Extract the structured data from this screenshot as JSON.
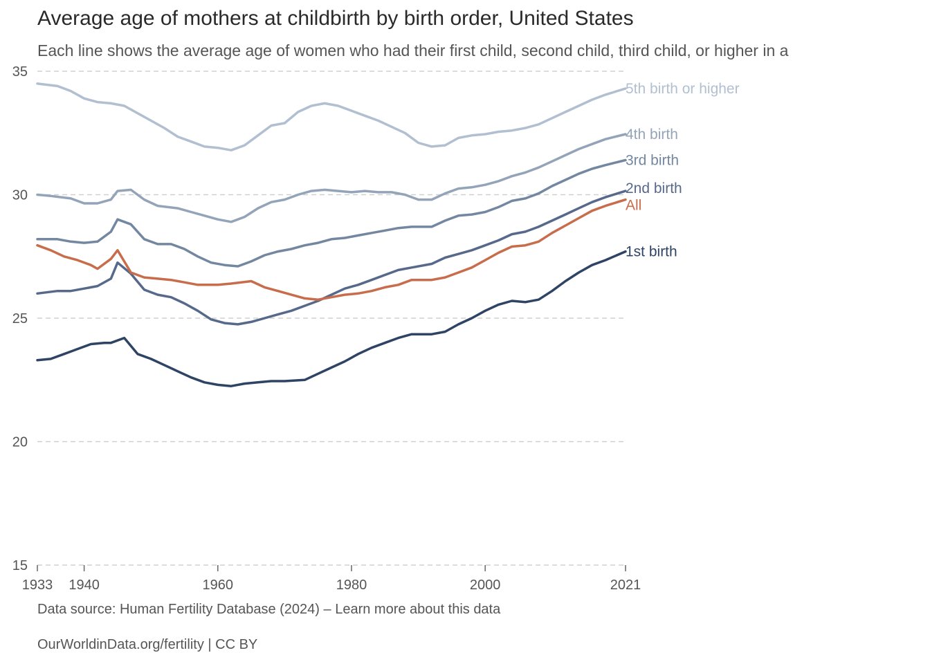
{
  "chart_data": {
    "type": "line",
    "title": "Average age of mothers at childbirth by birth order, United States",
    "subtitle": "Each line shows the average age of women who had their first child, second child, third child, or higher in a",
    "xlim": [
      1933,
      2021
    ],
    "ylim": [
      15,
      35
    ],
    "x_ticks": [
      1933,
      1940,
      1960,
      1980,
      2000,
      2021
    ],
    "y_ticks": [
      15,
      20,
      25,
      30,
      35
    ],
    "grid": "horizontal dashed",
    "legend": "inline labels at line ends",
    "series": [
      {
        "name": "5th birth or higher",
        "color": "#b1bfd1",
        "points": [
          [
            1933,
            34.5
          ],
          [
            1936,
            34.4
          ],
          [
            1938,
            34.2
          ],
          [
            1940,
            33.9
          ],
          [
            1942,
            33.75
          ],
          [
            1944,
            33.7
          ],
          [
            1946,
            33.6
          ],
          [
            1948,
            33.3
          ],
          [
            1950,
            33.0
          ],
          [
            1952,
            32.7
          ],
          [
            1954,
            32.35
          ],
          [
            1956,
            32.15
          ],
          [
            1958,
            31.95
          ],
          [
            1960,
            31.9
          ],
          [
            1962,
            31.8
          ],
          [
            1964,
            32.0
          ],
          [
            1966,
            32.4
          ],
          [
            1968,
            32.8
          ],
          [
            1970,
            32.9
          ],
          [
            1972,
            33.35
          ],
          [
            1974,
            33.6
          ],
          [
            1976,
            33.7
          ],
          [
            1978,
            33.6
          ],
          [
            1980,
            33.4
          ],
          [
            1982,
            33.2
          ],
          [
            1984,
            33.0
          ],
          [
            1986,
            32.75
          ],
          [
            1988,
            32.5
          ],
          [
            1990,
            32.1
          ],
          [
            1992,
            31.95
          ],
          [
            1994,
            32.0
          ],
          [
            1996,
            32.3
          ],
          [
            1998,
            32.4
          ],
          [
            2000,
            32.45
          ],
          [
            2002,
            32.55
          ],
          [
            2004,
            32.6
          ],
          [
            2006,
            32.7
          ],
          [
            2008,
            32.85
          ],
          [
            2010,
            33.1
          ],
          [
            2012,
            33.35
          ],
          [
            2014,
            33.6
          ],
          [
            2016,
            33.85
          ],
          [
            2018,
            34.05
          ],
          [
            2021,
            34.3
          ]
        ]
      },
      {
        "name": "4th birth",
        "color": "#94a4b8",
        "points": [
          [
            1933,
            30.0
          ],
          [
            1935,
            29.95
          ],
          [
            1938,
            29.85
          ],
          [
            1940,
            29.65
          ],
          [
            1942,
            29.65
          ],
          [
            1944,
            29.8
          ],
          [
            1945,
            30.15
          ],
          [
            1947,
            30.2
          ],
          [
            1949,
            29.8
          ],
          [
            1951,
            29.55
          ],
          [
            1954,
            29.45
          ],
          [
            1956,
            29.3
          ],
          [
            1958,
            29.15
          ],
          [
            1960,
            29.0
          ],
          [
            1962,
            28.9
          ],
          [
            1964,
            29.1
          ],
          [
            1966,
            29.45
          ],
          [
            1968,
            29.7
          ],
          [
            1970,
            29.8
          ],
          [
            1972,
            30.0
          ],
          [
            1974,
            30.15
          ],
          [
            1976,
            30.2
          ],
          [
            1978,
            30.15
          ],
          [
            1980,
            30.1
          ],
          [
            1982,
            30.15
          ],
          [
            1984,
            30.1
          ],
          [
            1986,
            30.1
          ],
          [
            1988,
            30.0
          ],
          [
            1990,
            29.8
          ],
          [
            1992,
            29.8
          ],
          [
            1994,
            30.05
          ],
          [
            1996,
            30.25
          ],
          [
            1998,
            30.3
          ],
          [
            2000,
            30.4
          ],
          [
            2002,
            30.55
          ],
          [
            2004,
            30.75
          ],
          [
            2006,
            30.9
          ],
          [
            2008,
            31.1
          ],
          [
            2010,
            31.35
          ],
          [
            2012,
            31.6
          ],
          [
            2014,
            31.85
          ],
          [
            2016,
            32.05
          ],
          [
            2018,
            32.25
          ],
          [
            2021,
            32.45
          ]
        ]
      },
      {
        "name": "3rd birth",
        "color": "#7387a1",
        "points": [
          [
            1933,
            28.2
          ],
          [
            1936,
            28.2
          ],
          [
            1938,
            28.1
          ],
          [
            1940,
            28.05
          ],
          [
            1942,
            28.1
          ],
          [
            1944,
            28.5
          ],
          [
            1945,
            29.0
          ],
          [
            1947,
            28.8
          ],
          [
            1949,
            28.2
          ],
          [
            1951,
            28.0
          ],
          [
            1953,
            28.0
          ],
          [
            1955,
            27.8
          ],
          [
            1957,
            27.5
          ],
          [
            1959,
            27.25
          ],
          [
            1961,
            27.15
          ],
          [
            1963,
            27.1
          ],
          [
            1965,
            27.3
          ],
          [
            1967,
            27.55
          ],
          [
            1969,
            27.7
          ],
          [
            1971,
            27.8
          ],
          [
            1973,
            27.95
          ],
          [
            1975,
            28.05
          ],
          [
            1977,
            28.2
          ],
          [
            1979,
            28.25
          ],
          [
            1981,
            28.35
          ],
          [
            1983,
            28.45
          ],
          [
            1985,
            28.55
          ],
          [
            1987,
            28.65
          ],
          [
            1989,
            28.7
          ],
          [
            1992,
            28.7
          ],
          [
            1994,
            28.95
          ],
          [
            1996,
            29.15
          ],
          [
            1998,
            29.2
          ],
          [
            2000,
            29.3
          ],
          [
            2002,
            29.5
          ],
          [
            2004,
            29.75
          ],
          [
            2006,
            29.85
          ],
          [
            2008,
            30.05
          ],
          [
            2010,
            30.35
          ],
          [
            2012,
            30.6
          ],
          [
            2014,
            30.85
          ],
          [
            2016,
            31.05
          ],
          [
            2018,
            31.2
          ],
          [
            2021,
            31.4
          ]
        ]
      },
      {
        "name": "2nd birth",
        "color": "#57698a",
        "points": [
          [
            1933,
            26.0
          ],
          [
            1936,
            26.1
          ],
          [
            1938,
            26.1
          ],
          [
            1940,
            26.2
          ],
          [
            1942,
            26.3
          ],
          [
            1944,
            26.6
          ],
          [
            1945,
            27.25
          ],
          [
            1947,
            26.8
          ],
          [
            1949,
            26.15
          ],
          [
            1951,
            25.95
          ],
          [
            1953,
            25.85
          ],
          [
            1955,
            25.6
          ],
          [
            1957,
            25.3
          ],
          [
            1959,
            24.95
          ],
          [
            1961,
            24.8
          ],
          [
            1963,
            24.75
          ],
          [
            1965,
            24.85
          ],
          [
            1967,
            25.0
          ],
          [
            1969,
            25.15
          ],
          [
            1971,
            25.3
          ],
          [
            1973,
            25.5
          ],
          [
            1975,
            25.7
          ],
          [
            1977,
            25.95
          ],
          [
            1979,
            26.2
          ],
          [
            1981,
            26.35
          ],
          [
            1983,
            26.55
          ],
          [
            1985,
            26.75
          ],
          [
            1987,
            26.95
          ],
          [
            1989,
            27.05
          ],
          [
            1992,
            27.2
          ],
          [
            1994,
            27.45
          ],
          [
            1996,
            27.6
          ],
          [
            1998,
            27.75
          ],
          [
            2000,
            27.95
          ],
          [
            2002,
            28.15
          ],
          [
            2004,
            28.4
          ],
          [
            2006,
            28.5
          ],
          [
            2008,
            28.7
          ],
          [
            2010,
            28.95
          ],
          [
            2012,
            29.2
          ],
          [
            2014,
            29.45
          ],
          [
            2016,
            29.7
          ],
          [
            2018,
            29.9
          ],
          [
            2021,
            30.15
          ]
        ]
      },
      {
        "name": "All",
        "color": "#c86d4c",
        "points": [
          [
            1933,
            27.95
          ],
          [
            1935,
            27.75
          ],
          [
            1937,
            27.5
          ],
          [
            1939,
            27.35
          ],
          [
            1941,
            27.15
          ],
          [
            1942,
            27.0
          ],
          [
            1944,
            27.4
          ],
          [
            1945,
            27.75
          ],
          [
            1947,
            26.85
          ],
          [
            1949,
            26.65
          ],
          [
            1951,
            26.6
          ],
          [
            1953,
            26.55
          ],
          [
            1955,
            26.45
          ],
          [
            1957,
            26.35
          ],
          [
            1960,
            26.35
          ],
          [
            1962,
            26.4
          ],
          [
            1965,
            26.5
          ],
          [
            1967,
            26.25
          ],
          [
            1969,
            26.1
          ],
          [
            1971,
            25.95
          ],
          [
            1973,
            25.8
          ],
          [
            1975,
            25.75
          ],
          [
            1977,
            25.85
          ],
          [
            1979,
            25.95
          ],
          [
            1981,
            26.0
          ],
          [
            1983,
            26.1
          ],
          [
            1985,
            26.25
          ],
          [
            1987,
            26.35
          ],
          [
            1989,
            26.55
          ],
          [
            1992,
            26.55
          ],
          [
            1994,
            26.65
          ],
          [
            1996,
            26.85
          ],
          [
            1998,
            27.05
          ],
          [
            2000,
            27.35
          ],
          [
            2002,
            27.65
          ],
          [
            2004,
            27.9
          ],
          [
            2006,
            27.95
          ],
          [
            2008,
            28.1
          ],
          [
            2010,
            28.45
          ],
          [
            2012,
            28.75
          ],
          [
            2014,
            29.05
          ],
          [
            2016,
            29.35
          ],
          [
            2018,
            29.55
          ],
          [
            2021,
            29.8
          ]
        ]
      },
      {
        "name": "1st birth",
        "color": "#2f4465",
        "points": [
          [
            1933,
            23.3
          ],
          [
            1935,
            23.35
          ],
          [
            1937,
            23.55
          ],
          [
            1939,
            23.75
          ],
          [
            1941,
            23.95
          ],
          [
            1943,
            24.0
          ],
          [
            1944,
            24.0
          ],
          [
            1946,
            24.2
          ],
          [
            1948,
            23.55
          ],
          [
            1950,
            23.35
          ],
          [
            1952,
            23.1
          ],
          [
            1954,
            22.85
          ],
          [
            1956,
            22.6
          ],
          [
            1958,
            22.4
          ],
          [
            1960,
            22.3
          ],
          [
            1962,
            22.25
          ],
          [
            1964,
            22.35
          ],
          [
            1966,
            22.4
          ],
          [
            1968,
            22.45
          ],
          [
            1970,
            22.45
          ],
          [
            1973,
            22.5
          ],
          [
            1975,
            22.75
          ],
          [
            1977,
            23.0
          ],
          [
            1979,
            23.25
          ],
          [
            1981,
            23.55
          ],
          [
            1983,
            23.8
          ],
          [
            1985,
            24.0
          ],
          [
            1987,
            24.2
          ],
          [
            1989,
            24.35
          ],
          [
            1992,
            24.35
          ],
          [
            1994,
            24.45
          ],
          [
            1996,
            24.75
          ],
          [
            1998,
            25.0
          ],
          [
            2000,
            25.3
          ],
          [
            2002,
            25.55
          ],
          [
            2004,
            25.7
          ],
          [
            2006,
            25.65
          ],
          [
            2008,
            25.75
          ],
          [
            2010,
            26.1
          ],
          [
            2012,
            26.5
          ],
          [
            2014,
            26.85
          ],
          [
            2016,
            27.15
          ],
          [
            2018,
            27.35
          ],
          [
            2021,
            27.7
          ]
        ]
      }
    ]
  },
  "footer": {
    "source": "Data source: Human Fertility Database (2024) – Learn more about this data",
    "license": "OurWorldinData.org/fertility | CC BY"
  }
}
